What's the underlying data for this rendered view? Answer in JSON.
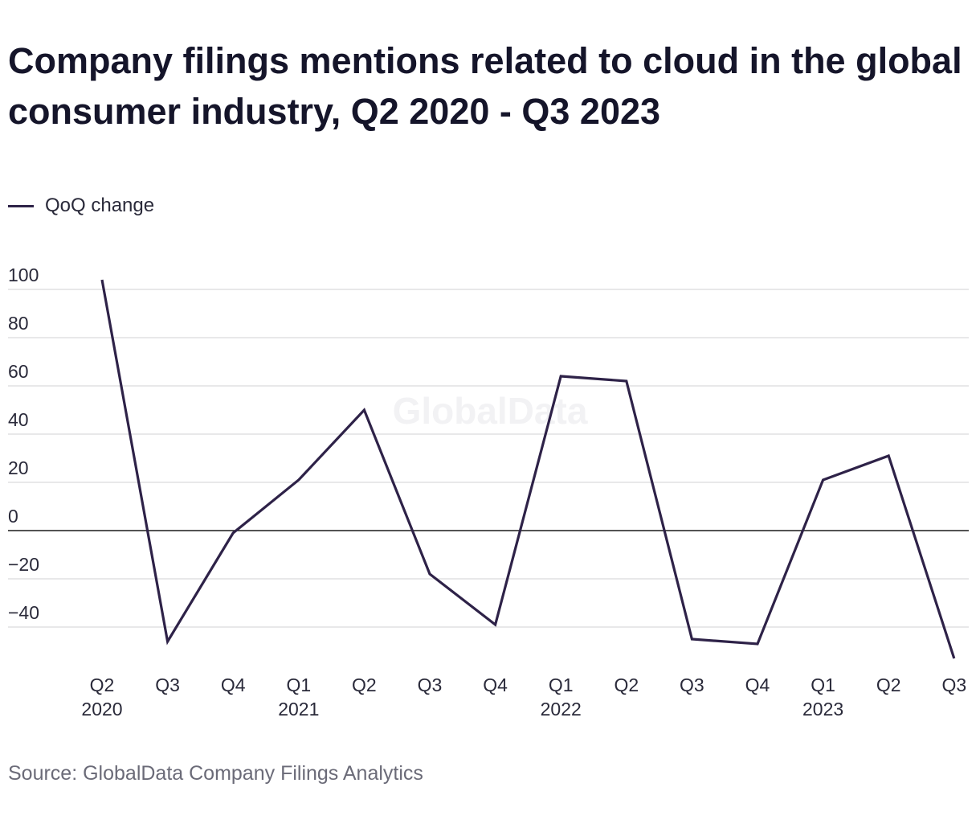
{
  "title": "Company filings mentions related to cloud in the global consumer industry, Q2 2020 - Q3 2023",
  "legend_label": "QoQ change",
  "source": "Source: GlobalData Company Filings Analytics",
  "watermark": "GlobalData",
  "colors": {
    "line": "#2e2248",
    "grid": "#d9d9dc",
    "zero_line": "#1a1a1a",
    "text": "#2a2a3a"
  },
  "chart_data": {
    "type": "line",
    "x_quarters": [
      "Q2",
      "Q3",
      "Q4",
      "Q1",
      "Q2",
      "Q3",
      "Q4",
      "Q1",
      "Q2",
      "Q3",
      "Q4",
      "Q1",
      "Q2",
      "Q3"
    ],
    "x_years": [
      "2020",
      "",
      "",
      "2021",
      "",
      "",
      "",
      "2022",
      "",
      "",
      "",
      "2023",
      "",
      ""
    ],
    "series": [
      {
        "name": "QoQ change",
        "values": [
          104,
          -46,
          -1,
          21,
          50,
          -18,
          -39,
          64,
          62,
          -45,
          -47,
          21,
          31,
          -53
        ]
      }
    ],
    "y_ticks": [
      100,
      80,
      60,
      40,
      20,
      0,
      -20,
      -40
    ],
    "y_tick_labels": [
      "100",
      "80",
      "60",
      "40",
      "20",
      "0",
      "−20",
      "−40"
    ],
    "ylim": [
      -55,
      105
    ],
    "grid": true,
    "legend_position": "top-left"
  }
}
